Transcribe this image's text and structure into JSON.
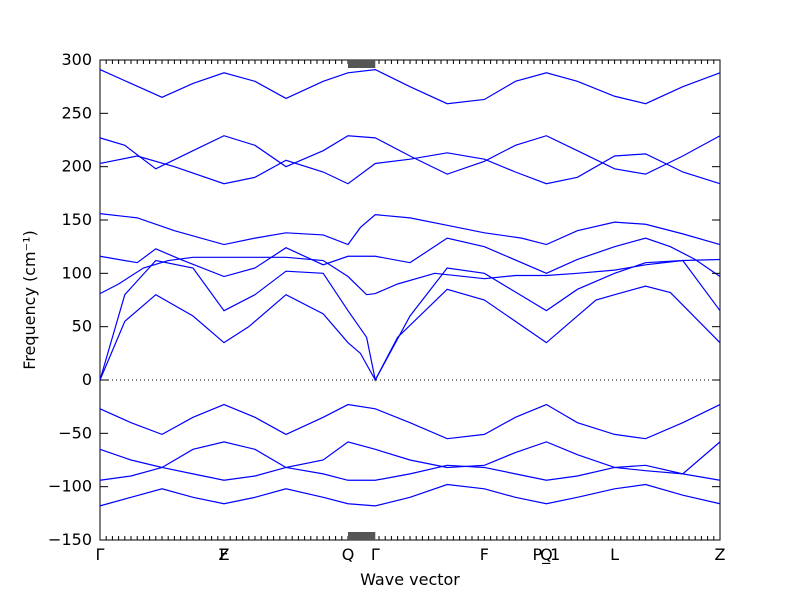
{
  "chart_data": {
    "type": "line",
    "title": "",
    "xlabel": "Wave vector",
    "ylabel": "Frequency (cm⁻¹)",
    "ylim": [
      -150,
      300
    ],
    "y_ticks": [
      -150,
      -100,
      -50,
      0,
      50,
      100,
      150,
      200,
      250,
      300
    ],
    "zero_line": true,
    "grid": false,
    "line_color": "#0000ff",
    "x_range": [
      0,
      5
    ],
    "x_labels": [
      {
        "label": "Γ",
        "x": 0
      },
      {
        "label": "Z",
        "x": 1
      },
      {
        "label": "F",
        "x": 1
      },
      {
        "label": "Q",
        "x": 2
      },
      {
        "label": "Γ",
        "x": 2.22
      },
      {
        "label": "F",
        "x": 3.1
      },
      {
        "label": "P_1",
        "x": 3.6
      },
      {
        "label": "Q",
        "x": 3.6
      },
      {
        "label": "L",
        "x": 4.15
      },
      {
        "label": "Z",
        "x": 5
      }
    ],
    "series": [
      {
        "points": [
          [
            0,
            0
          ],
          [
            0.2,
            55
          ],
          [
            0.45,
            80
          ],
          [
            0.75,
            60
          ],
          [
            1,
            35
          ],
          [
            1.2,
            50
          ],
          [
            1.5,
            80
          ],
          [
            1.8,
            62
          ],
          [
            2,
            35
          ],
          [
            2.1,
            25
          ],
          [
            2.22,
            0
          ],
          [
            2.4,
            40
          ],
          [
            2.8,
            85
          ],
          [
            3.1,
            75
          ],
          [
            3.6,
            35
          ],
          [
            3.8,
            55
          ],
          [
            4,
            75
          ],
          [
            4.15,
            80
          ],
          [
            4.4,
            88
          ],
          [
            4.6,
            82
          ],
          [
            5,
            35
          ]
        ]
      },
      {
        "points": [
          [
            0,
            0
          ],
          [
            0.2,
            80
          ],
          [
            0.45,
            112
          ],
          [
            0.75,
            105
          ],
          [
            1,
            65
          ],
          [
            1.25,
            80
          ],
          [
            1.5,
            102
          ],
          [
            1.8,
            100
          ],
          [
            2,
            65
          ],
          [
            2.15,
            40
          ],
          [
            2.22,
            0
          ],
          [
            2.5,
            60
          ],
          [
            2.8,
            105
          ],
          [
            3.1,
            100
          ],
          [
            3.6,
            65
          ],
          [
            3.85,
            85
          ],
          [
            4.15,
            100
          ],
          [
            4.4,
            110
          ],
          [
            4.7,
            112
          ],
          [
            5,
            65
          ]
        ]
      },
      {
        "points": [
          [
            0,
            81
          ],
          [
            0.15,
            90
          ],
          [
            0.35,
            105
          ],
          [
            0.55,
            112
          ],
          [
            0.75,
            115
          ],
          [
            1,
            115
          ],
          [
            1.25,
            115
          ],
          [
            1.5,
            115
          ],
          [
            1.8,
            112
          ],
          [
            2,
            97
          ],
          [
            2.15,
            80
          ],
          [
            2.22,
            81
          ],
          [
            2.4,
            90
          ],
          [
            2.7,
            100
          ],
          [
            3.1,
            95
          ],
          [
            3.35,
            98
          ],
          [
            3.6,
            98
          ],
          [
            3.85,
            100
          ],
          [
            4.15,
            103
          ],
          [
            4.4,
            108
          ],
          [
            4.7,
            112
          ],
          [
            5,
            113
          ]
        ]
      },
      {
        "points": [
          [
            0,
            116
          ],
          [
            0.3,
            110
          ],
          [
            0.45,
            123
          ],
          [
            0.65,
            113
          ],
          [
            1,
            97
          ],
          [
            1.25,
            105
          ],
          [
            1.5,
            124
          ],
          [
            1.8,
            108
          ],
          [
            2,
            116
          ],
          [
            2.22,
            116
          ],
          [
            2.5,
            110
          ],
          [
            2.8,
            133
          ],
          [
            3.1,
            125
          ],
          [
            3.6,
            100
          ],
          [
            3.85,
            113
          ],
          [
            4.15,
            125
          ],
          [
            4.4,
            133
          ],
          [
            4.6,
            125
          ],
          [
            4.8,
            113
          ],
          [
            5,
            97
          ]
        ]
      },
      {
        "points": [
          [
            0,
            156
          ],
          [
            0.3,
            152
          ],
          [
            0.6,
            140
          ],
          [
            1,
            127
          ],
          [
            1.25,
            133
          ],
          [
            1.5,
            138
          ],
          [
            1.8,
            136
          ],
          [
            2,
            127
          ],
          [
            2.1,
            143
          ],
          [
            2.22,
            155
          ],
          [
            2.5,
            152
          ],
          [
            2.8,
            145
          ],
          [
            3.1,
            138
          ],
          [
            3.4,
            133
          ],
          [
            3.6,
            127
          ],
          [
            3.85,
            140
          ],
          [
            4.15,
            148
          ],
          [
            4.4,
            146
          ],
          [
            4.7,
            137
          ],
          [
            5,
            127
          ]
        ]
      },
      {
        "points": [
          [
            0,
            203
          ],
          [
            0.3,
            210
          ],
          [
            0.6,
            200
          ],
          [
            1,
            184
          ],
          [
            1.25,
            190
          ],
          [
            1.5,
            206
          ],
          [
            1.8,
            195
          ],
          [
            2,
            184
          ],
          [
            2.22,
            203
          ],
          [
            2.5,
            207
          ],
          [
            2.8,
            213
          ],
          [
            3.1,
            207
          ],
          [
            3.35,
            195
          ],
          [
            3.6,
            184
          ],
          [
            3.85,
            190
          ],
          [
            4.15,
            210
          ],
          [
            4.4,
            212
          ],
          [
            4.7,
            195
          ],
          [
            5,
            184
          ]
        ]
      },
      {
        "points": [
          [
            0,
            227
          ],
          [
            0.2,
            220
          ],
          [
            0.45,
            198
          ],
          [
            0.75,
            215
          ],
          [
            1,
            229
          ],
          [
            1.25,
            220
          ],
          [
            1.5,
            200
          ],
          [
            1.8,
            215
          ],
          [
            2,
            229
          ],
          [
            2.22,
            227
          ],
          [
            2.5,
            210
          ],
          [
            2.8,
            193
          ],
          [
            3.1,
            205
          ],
          [
            3.35,
            220
          ],
          [
            3.6,
            229
          ],
          [
            3.85,
            215
          ],
          [
            4.15,
            198
          ],
          [
            4.4,
            193
          ],
          [
            4.7,
            210
          ],
          [
            5,
            229
          ]
        ]
      },
      {
        "points": [
          [
            0,
            291
          ],
          [
            0.25,
            278
          ],
          [
            0.5,
            265
          ],
          [
            0.75,
            278
          ],
          [
            1,
            288
          ],
          [
            1.25,
            280
          ],
          [
            1.5,
            264
          ],
          [
            1.8,
            280
          ],
          [
            2,
            288
          ],
          [
            2.22,
            291
          ],
          [
            2.5,
            275
          ],
          [
            2.8,
            259
          ],
          [
            3.1,
            263
          ],
          [
            3.35,
            280
          ],
          [
            3.6,
            288
          ],
          [
            3.85,
            280
          ],
          [
            4.15,
            266
          ],
          [
            4.4,
            259
          ],
          [
            4.7,
            275
          ],
          [
            5,
            288
          ]
        ]
      },
      {
        "points": [
          [
            0,
            -27
          ],
          [
            0.25,
            -40
          ],
          [
            0.5,
            -51
          ],
          [
            0.75,
            -35
          ],
          [
            1,
            -23
          ],
          [
            1.25,
            -35
          ],
          [
            1.5,
            -51
          ],
          [
            1.8,
            -35
          ],
          [
            2,
            -23
          ],
          [
            2.22,
            -27
          ],
          [
            2.5,
            -40
          ],
          [
            2.8,
            -55
          ],
          [
            3.1,
            -51
          ],
          [
            3.35,
            -35
          ],
          [
            3.6,
            -23
          ],
          [
            3.85,
            -40
          ],
          [
            4.15,
            -51
          ],
          [
            4.4,
            -55
          ],
          [
            4.7,
            -40
          ],
          [
            5,
            -23
          ]
        ]
      },
      {
        "points": [
          [
            0,
            -65
          ],
          [
            0.25,
            -75
          ],
          [
            0.5,
            -82
          ],
          [
            0.75,
            -65
          ],
          [
            1,
            -58
          ],
          [
            1.25,
            -65
          ],
          [
            1.5,
            -82
          ],
          [
            1.8,
            -75
          ],
          [
            2,
            -58
          ],
          [
            2.22,
            -65
          ],
          [
            2.5,
            -75
          ],
          [
            2.8,
            -82
          ],
          [
            3.1,
            -80
          ],
          [
            3.35,
            -68
          ],
          [
            3.6,
            -58
          ],
          [
            3.85,
            -70
          ],
          [
            4.15,
            -82
          ],
          [
            4.4,
            -85
          ],
          [
            4.7,
            -88
          ],
          [
            5,
            -58
          ]
        ]
      },
      {
        "points": [
          [
            0,
            -94
          ],
          [
            0.25,
            -90
          ],
          [
            0.5,
            -82
          ],
          [
            0.75,
            -88
          ],
          [
            1,
            -94
          ],
          [
            1.25,
            -90
          ],
          [
            1.5,
            -82
          ],
          [
            1.8,
            -88
          ],
          [
            2,
            -94
          ],
          [
            2.22,
            -94
          ],
          [
            2.5,
            -88
          ],
          [
            2.8,
            -80
          ],
          [
            3.1,
            -82
          ],
          [
            3.35,
            -88
          ],
          [
            3.6,
            -94
          ],
          [
            3.85,
            -90
          ],
          [
            4.15,
            -82
          ],
          [
            4.4,
            -80
          ],
          [
            4.7,
            -88
          ],
          [
            5,
            -94
          ]
        ]
      },
      {
        "points": [
          [
            0,
            -118
          ],
          [
            0.25,
            -110
          ],
          [
            0.5,
            -102
          ],
          [
            0.75,
            -110
          ],
          [
            1,
            -116
          ],
          [
            1.25,
            -110
          ],
          [
            1.5,
            -102
          ],
          [
            1.8,
            -110
          ],
          [
            2,
            -116
          ],
          [
            2.22,
            -118
          ],
          [
            2.5,
            -110
          ],
          [
            2.8,
            -98
          ],
          [
            3.1,
            -102
          ],
          [
            3.35,
            -110
          ],
          [
            3.6,
            -116
          ],
          [
            3.85,
            -110
          ],
          [
            4.15,
            -102
          ],
          [
            4.4,
            -98
          ],
          [
            4.7,
            -108
          ],
          [
            5,
            -116
          ]
        ]
      }
    ]
  }
}
